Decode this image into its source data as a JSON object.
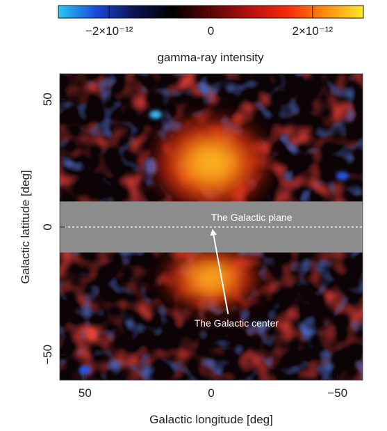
{
  "chart_data": {
    "type": "heatmap",
    "title": "",
    "colorbar": {
      "label": "gamma-ray intensity",
      "range": [
        -3e-12,
        3e-12
      ],
      "ticks": [
        {
          "value": -2e-12,
          "label": "−2×10⁻¹²"
        },
        {
          "value": 0,
          "label": "0"
        },
        {
          "value": 2e-12,
          "label": "2×10⁻¹²"
        }
      ],
      "colors": [
        "#29c8f2",
        "#1a49d6",
        "#0a1450",
        "#000000",
        "#5a0606",
        "#b21010",
        "#f52a0a",
        "#ff8c10",
        "#ffe82a"
      ]
    },
    "xlabel": "Galactic longitude [deg]",
    "ylabel": "Galactic latitude [deg]",
    "xlim": [
      60,
      -60
    ],
    "ylim": [
      -60,
      60
    ],
    "xticks": [
      {
        "value": 50,
        "label": "50"
      },
      {
        "value": 0,
        "label": "0"
      },
      {
        "value": -50,
        "label": "−50"
      }
    ],
    "yticks": [
      {
        "value": 50,
        "label": "50"
      },
      {
        "value": 0,
        "label": "0"
      },
      {
        "value": -50,
        "label": "−50"
      }
    ],
    "masked_band": {
      "lat_range": [
        -10,
        10
      ],
      "color": "#8c8c8c"
    },
    "annotations": [
      {
        "text": "The Galactic plane",
        "lon": -16,
        "lat": 2.5
      },
      {
        "text": "The Galactic center",
        "lon": -10,
        "lat": -39,
        "arrow_to": [
          0,
          0
        ]
      }
    ],
    "features": [
      {
        "name": "northern-lobe",
        "lon_range": [
          -18,
          18
        ],
        "lat_range": [
          10,
          40
        ],
        "level": 0.95
      },
      {
        "name": "southern-lobe",
        "lon_range": [
          -15,
          15
        ],
        "lat_range": [
          -30,
          -10
        ],
        "level": 0.9
      },
      {
        "name": "blue-spot-north",
        "lon": 22,
        "lat": 44,
        "level": -1
      },
      {
        "name": "blue-spot-east",
        "lon": -52,
        "lat": 20,
        "level": -0.8
      },
      {
        "name": "blue-spot-south",
        "lon": 50,
        "lat": -56,
        "level": -0.9
      }
    ]
  }
}
